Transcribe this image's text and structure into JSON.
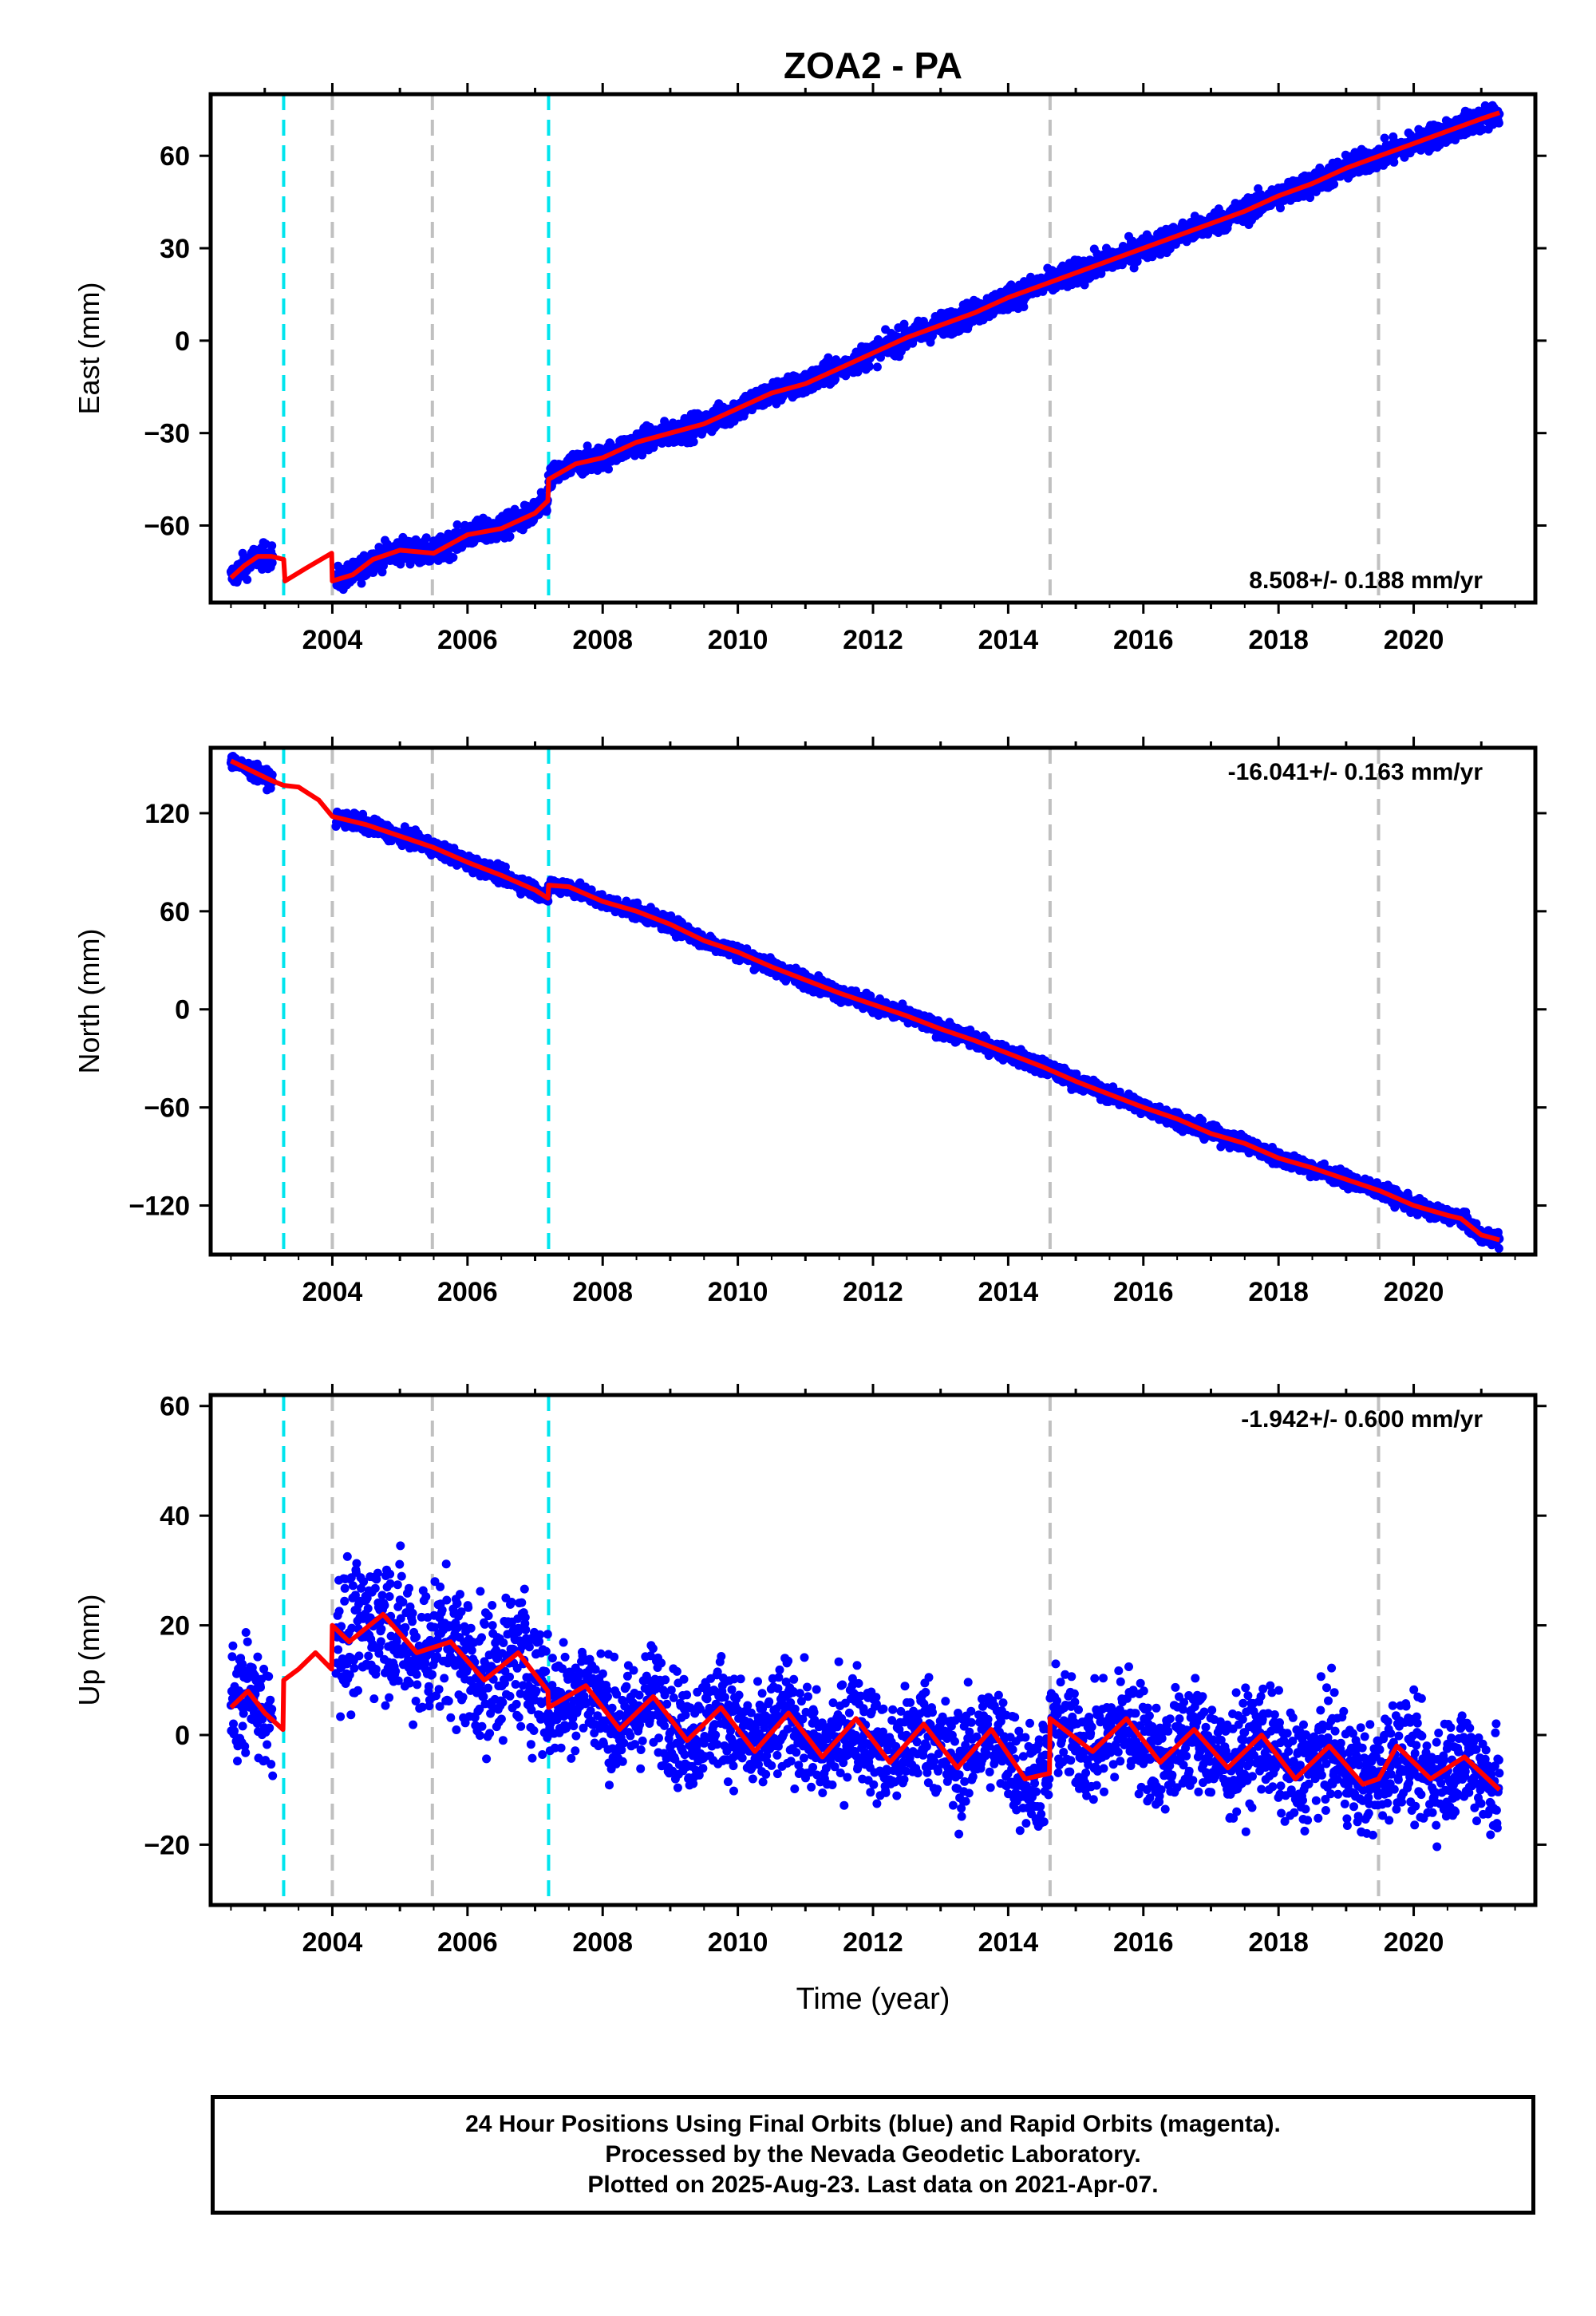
{
  "title": "ZOA2 - PA",
  "footer": {
    "line1": "24 Hour Positions Using Final Orbits (blue) and Rapid Orbits (magenta).",
    "line2": "Processed by the Nevada Geodetic Laboratory.",
    "line3": "Plotted on 2025-Aug-23. Last data on 2021-Apr-07."
  },
  "colors": {
    "observations": "#0000ff",
    "model": "#ff0000",
    "equipment_change": "#00e5ee",
    "other_event": "#c0c0c0"
  },
  "chart_data": [
    {
      "type": "scatter",
      "component": "east",
      "ylabel": "East (mm)",
      "xlabel": "",
      "xlim": [
        2002.2,
        2021.8
      ],
      "ylim": [
        -85,
        80
      ],
      "yticks": [
        -60,
        -30,
        0,
        30,
        60
      ],
      "xticks": [
        2004,
        2006,
        2008,
        2010,
        2012,
        2014,
        2016,
        2018,
        2020
      ],
      "rate_label": "8.508+/- 0.188 mm/yr",
      "rate_position": "bottom-right",
      "vlines_cyan": [
        2003.28,
        2007.2
      ],
      "vlines_gray": [
        2004.0,
        2005.48,
        2014.62,
        2019.48
      ],
      "series": [
        {
          "x": [
            2002.5,
            2002.7,
            2002.9,
            2003.1,
            2003.28,
            2003.3,
            2003.6,
            2003.99,
            2004.0,
            2004.3,
            2004.6,
            2005.0,
            2005.5,
            2006.0,
            2006.5,
            2007.0,
            2007.19,
            2007.2,
            2007.6,
            2008.0,
            2008.5,
            2009.0,
            2009.5,
            2010.0,
            2010.5,
            2011.0,
            2011.5,
            2012.0,
            2012.5,
            2013.0,
            2013.5,
            2014.0,
            2014.5,
            2015.0,
            2015.5,
            2016.0,
            2016.5,
            2017.0,
            2017.5,
            2018.0,
            2018.5,
            2019.0,
            2019.5,
            2020.0,
            2020.5,
            2021.0,
            2021.27
          ],
          "y": [
            -77,
            -73,
            -70,
            -70,
            -71,
            -78,
            -74,
            -69,
            -78,
            -76,
            -71,
            -68,
            -69,
            -63,
            -61,
            -56,
            -52,
            -45,
            -40,
            -38,
            -33,
            -30,
            -27,
            -22,
            -17,
            -14,
            -9,
            -4,
            1,
            5,
            9,
            14,
            18,
            22,
            26,
            30,
            34,
            38,
            42,
            47,
            51,
            56,
            60,
            64,
            68,
            72,
            74
          ]
        }
      ]
    },
    {
      "type": "scatter",
      "component": "north",
      "ylabel": "North (mm)",
      "xlabel": "",
      "xlim": [
        2002.2,
        2021.8
      ],
      "ylim": [
        -150,
        160
      ],
      "yticks": [
        -120,
        -60,
        0,
        60,
        120
      ],
      "xticks": [
        2004,
        2006,
        2008,
        2010,
        2012,
        2014,
        2016,
        2018,
        2020
      ],
      "rate_label": "-16.041+/- 0.163 mm/yr",
      "rate_position": "top-right",
      "vlines_cyan": [
        2003.28,
        2007.2
      ],
      "vlines_gray": [
        2004.0,
        2005.48,
        2014.62,
        2019.48
      ],
      "series": [
        {
          "x": [
            2002.5,
            2002.8,
            2003.1,
            2003.28,
            2003.5,
            2003.8,
            2004.0,
            2004.5,
            2005.0,
            2005.5,
            2006.0,
            2006.5,
            2007.0,
            2007.19,
            2007.2,
            2007.5,
            2008.0,
            2008.5,
            2009.0,
            2009.5,
            2010.0,
            2010.5,
            2011.0,
            2011.5,
            2012.0,
            2012.5,
            2013.0,
            2013.5,
            2014.0,
            2014.5,
            2015.0,
            2015.5,
            2016.0,
            2016.5,
            2017.0,
            2017.5,
            2018.0,
            2018.5,
            2019.0,
            2019.5,
            2020.0,
            2020.5,
            2020.7,
            2021.0,
            2021.27
          ],
          "y": [
            152,
            146,
            140,
            137,
            136,
            128,
            118,
            113,
            106,
            99,
            90,
            82,
            73,
            68,
            76,
            75,
            66,
            60,
            52,
            42,
            35,
            26,
            18,
            10,
            3,
            -4,
            -12,
            -19,
            -27,
            -35,
            -44,
            -52,
            -60,
            -67,
            -76,
            -82,
            -91,
            -97,
            -104,
            -111,
            -120,
            -126,
            -128,
            -138,
            -141
          ]
        }
      ]
    },
    {
      "type": "scatter",
      "component": "up",
      "ylabel": "Up (mm)",
      "xlabel": "Time (year)",
      "xlim": [
        2002.2,
        2021.8
      ],
      "ylim": [
        -31,
        62
      ],
      "yticks": [
        -20,
        0,
        20,
        40,
        60
      ],
      "xticks": [
        2004,
        2006,
        2008,
        2010,
        2012,
        2014,
        2016,
        2018,
        2020
      ],
      "rate_label": "-1.942+/- 0.600 mm/yr",
      "rate_position": "top-right",
      "vlines_cyan": [
        2003.28,
        2007.2
      ],
      "vlines_gray": [
        2004.0,
        2005.48,
        2014.62,
        2019.48
      ],
      "series": [
        {
          "x": [
            2002.5,
            2002.75,
            2003.0,
            2003.27,
            2003.28,
            2003.5,
            2003.75,
            2003.99,
            2004.0,
            2004.25,
            2004.75,
            2005.25,
            2005.75,
            2006.25,
            2006.75,
            2007.19,
            2007.2,
            2007.75,
            2008.25,
            2008.75,
            2009.25,
            2009.75,
            2010.25,
            2010.75,
            2011.25,
            2011.75,
            2012.25,
            2012.75,
            2013.25,
            2013.75,
            2014.25,
            2014.61,
            2014.62,
            2015.25,
            2015.75,
            2016.25,
            2016.75,
            2017.25,
            2017.75,
            2018.25,
            2018.75,
            2019.25,
            2019.48,
            2019.75,
            2020.25,
            2020.75,
            2021.27
          ],
          "y": [
            5,
            8,
            4,
            1,
            10,
            12,
            15,
            12,
            20,
            17,
            22,
            15,
            17,
            10,
            15,
            8,
            5,
            9,
            1,
            7,
            -1,
            5,
            -3,
            4,
            -4,
            3,
            -5,
            2,
            -6,
            1,
            -8,
            -7,
            3,
            -3,
            3,
            -5,
            1,
            -6,
            0,
            -8,
            -2,
            -9,
            -8,
            -2,
            -8,
            -4,
            -10
          ]
        }
      ]
    }
  ]
}
